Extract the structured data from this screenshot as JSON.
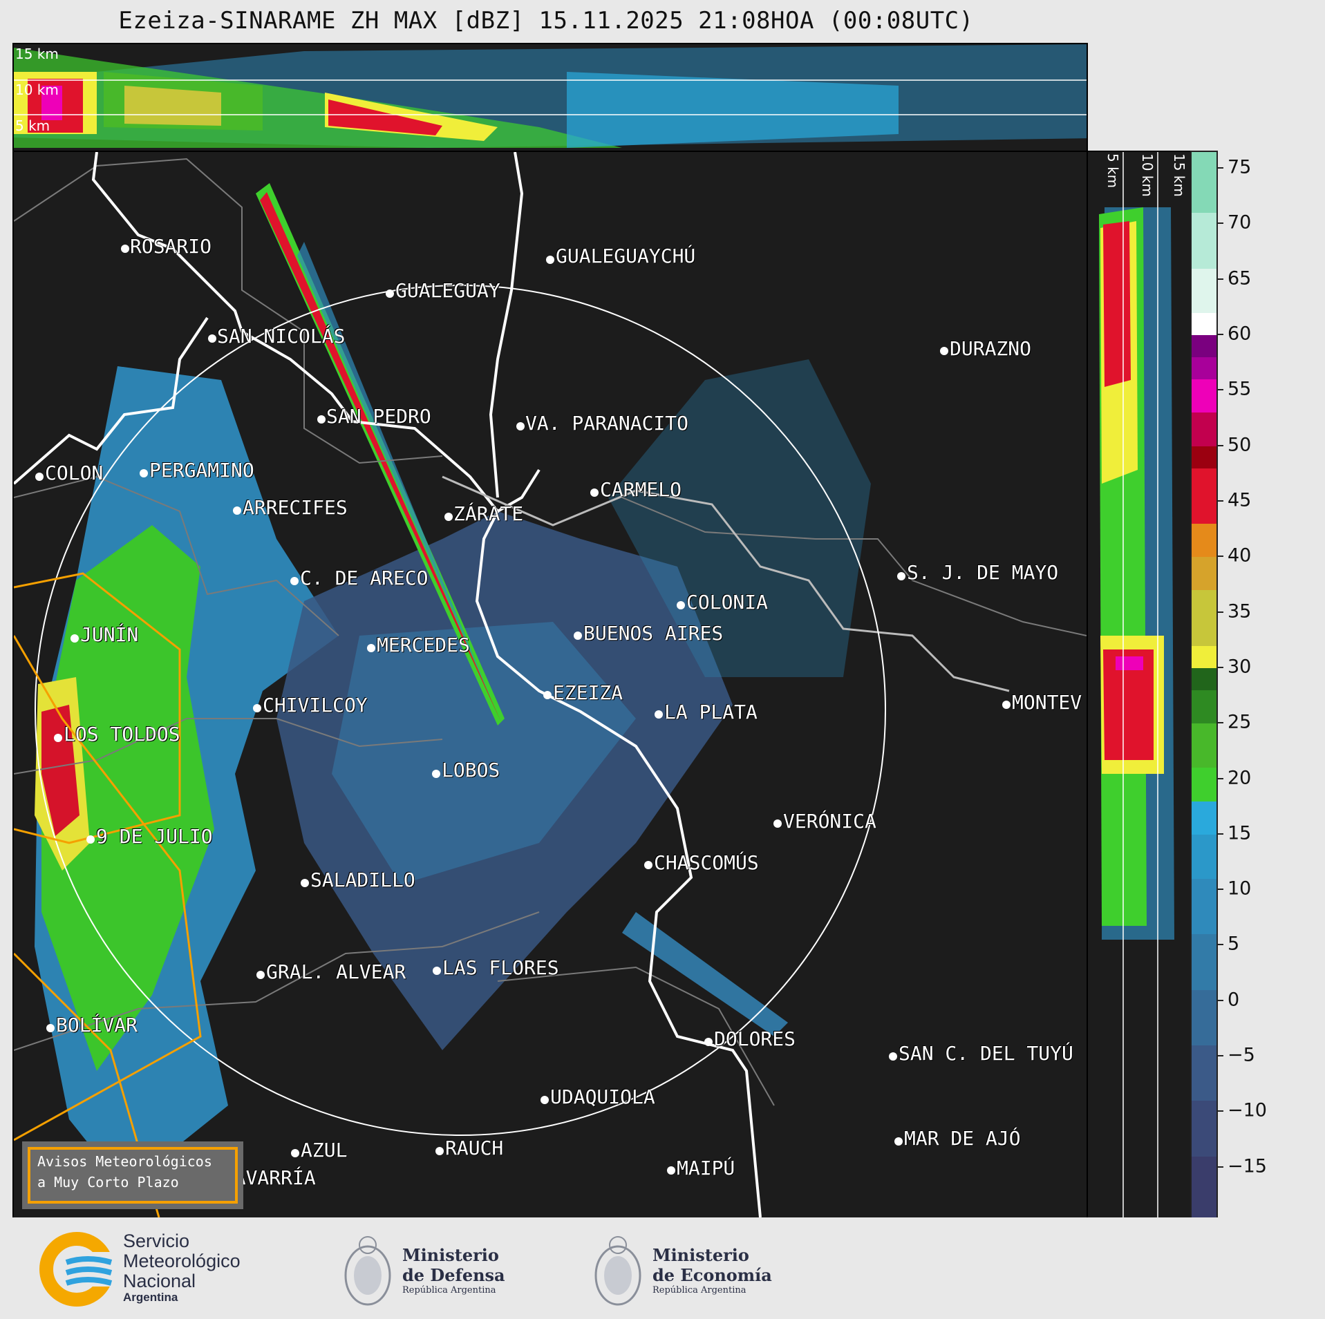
{
  "title": "Ezeiza-SINARAME ZH MAX [dBZ] 15.11.2025 21:08HOA (00:08UTC)",
  "profile_altitudes": [
    "15 km",
    "10 km",
    "5 km"
  ],
  "colorbar": {
    "ticks": [
      "75",
      "70",
      "65",
      "60",
      "55",
      "50",
      "45",
      "40",
      "35",
      "30",
      "25",
      "20",
      "15",
      "10",
      "5",
      "0",
      "−5",
      "−10",
      "−15"
    ],
    "tick_values": [
      75,
      70,
      65,
      60,
      55,
      50,
      45,
      40,
      35,
      30,
      25,
      20,
      15,
      10,
      5,
      0,
      -5,
      -10,
      -15
    ],
    "range": [
      -19.5,
      76.5
    ],
    "bands": [
      {
        "from": -19.5,
        "to": -14,
        "color": "#3a3d6b"
      },
      {
        "from": -14,
        "to": -9,
        "color": "#3b4a78"
      },
      {
        "from": -9,
        "to": -4,
        "color": "#3b5a88"
      },
      {
        "from": -4,
        "to": 1,
        "color": "#366c99"
      },
      {
        "from": 1,
        "to": 6,
        "color": "#327ba8"
      },
      {
        "from": 6,
        "to": 11,
        "color": "#2f8abb"
      },
      {
        "from": 11,
        "to": 15,
        "color": "#2b98c9"
      },
      {
        "from": 15,
        "to": 18,
        "color": "#2aa9dc"
      },
      {
        "from": 18,
        "to": 21,
        "color": "#3fcf2d"
      },
      {
        "from": 21,
        "to": 25,
        "color": "#48b82a"
      },
      {
        "from": 25,
        "to": 28,
        "color": "#2e8a22"
      },
      {
        "from": 28,
        "to": 30,
        "color": "#21651b"
      },
      {
        "from": 30,
        "to": 32,
        "color": "#f0ee3a"
      },
      {
        "from": 32,
        "to": 37,
        "color": "#c7c63a"
      },
      {
        "from": 37,
        "to": 40,
        "color": "#d6a32b"
      },
      {
        "from": 40,
        "to": 43,
        "color": "#e58a1a"
      },
      {
        "from": 43,
        "to": 48,
        "color": "#e0132c"
      },
      {
        "from": 48,
        "to": 50,
        "color": "#9b0010"
      },
      {
        "from": 50,
        "to": 53,
        "color": "#c2004e"
      },
      {
        "from": 53,
        "to": 56,
        "color": "#ee00b8"
      },
      {
        "from": 56,
        "to": 58,
        "color": "#a8009a"
      },
      {
        "from": 58,
        "to": 60,
        "color": "#7a007f"
      },
      {
        "from": 60,
        "to": 62,
        "color": "#ffffff"
      },
      {
        "from": 62,
        "to": 66,
        "color": "#dff5ec"
      },
      {
        "from": 66,
        "to": 71,
        "color": "#b6ead7"
      },
      {
        "from": 71,
        "to": 76.5,
        "color": "#84d9b6"
      }
    ]
  },
  "cities": [
    {
      "name": "ROSARIO"
    },
    {
      "name": "GUALEGUAYCHÚ"
    },
    {
      "name": "GUALEGUAY"
    },
    {
      "name": "SAN NICOLÁS"
    },
    {
      "name": "DURAZNO"
    },
    {
      "name": "SAN PEDRO"
    },
    {
      "name": "VA. PARANACITO"
    },
    {
      "name": "COLON"
    },
    {
      "name": "PERGAMINO"
    },
    {
      "name": "CARMELO"
    },
    {
      "name": "ARRECIFES"
    },
    {
      "name": "ZÁRATE"
    },
    {
      "name": "S. J. DE MAYO"
    },
    {
      "name": "C. DE ARECO"
    },
    {
      "name": "COLONIA"
    },
    {
      "name": "JUNÍN"
    },
    {
      "name": "BUENOS AIRES"
    },
    {
      "name": "MERCEDES"
    },
    {
      "name": "EZEIZA"
    },
    {
      "name": "MONTEV"
    },
    {
      "name": "CHIVILCOY"
    },
    {
      "name": "LA PLATA"
    },
    {
      "name": "LOS TOLDOS"
    },
    {
      "name": "LOBOS"
    },
    {
      "name": "VERÓNICA"
    },
    {
      "name": "9 DE JULIO"
    },
    {
      "name": "CHASCOMÚS"
    },
    {
      "name": "SALADILLO"
    },
    {
      "name": "GRAL. ALVEAR"
    },
    {
      "name": "LAS FLORES"
    },
    {
      "name": "BOLÍVAR"
    },
    {
      "name": "DOLORES"
    },
    {
      "name": "SAN C. DEL TUYÚ"
    },
    {
      "name": "UDAQUIOLA"
    },
    {
      "name": "RAUCH"
    },
    {
      "name": "MAR DE AJÓ"
    },
    {
      "name": "AZUL"
    },
    {
      "name": "OLAVARRÍA"
    },
    {
      "name": "MAIPÚ"
    }
  ],
  "warning_legend": {
    "line1": "Avisos Meteorológicos",
    "line2": "a Muy Corto Plazo",
    "color": "#f5a000"
  },
  "logos": {
    "smn": {
      "line1": "Servicio",
      "line2": "Meteorológico",
      "line3": "Nacional",
      "line4": "Argentina"
    },
    "defensa": {
      "line1": "Ministerio",
      "line2": "de Defensa",
      "line3": "República Argentina"
    },
    "economia": {
      "line1": "Ministerio",
      "line2": "de Economía",
      "line3": "República Argentina"
    }
  }
}
